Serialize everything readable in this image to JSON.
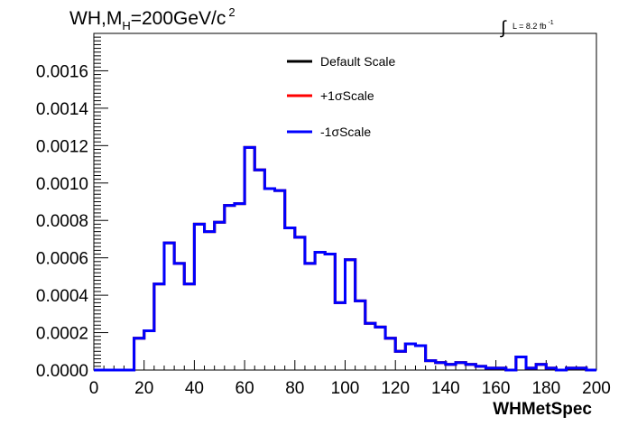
{
  "chart_data": {
    "type": "line",
    "style": "step histogram",
    "title": {
      "prefix": "WH,M",
      "subscript": "H",
      "value": "=200GeV/c",
      "superscript": "2"
    },
    "luminosity": {
      "symbol": "∫",
      "label": "L = 8.2 fb",
      "superscript": "-1"
    },
    "xlabel": "WHMetSpec",
    "ylabel": "",
    "xlim": [
      0,
      200
    ],
    "ylim": [
      0,
      0.0018
    ],
    "x_ticks": [
      0,
      20,
      40,
      60,
      80,
      100,
      120,
      140,
      160,
      180,
      200
    ],
    "x_tick_labels": [
      "0",
      "20",
      "40",
      "60",
      "80",
      "100",
      "120",
      "140",
      "160",
      "180",
      "200"
    ],
    "y_ticks": [
      0,
      0.0002,
      0.0004,
      0.0006,
      0.0008,
      0.001,
      0.0012,
      0.0014,
      0.0016
    ],
    "y_tick_labels": [
      "0.0000",
      "0.0002",
      "0.0004",
      "0.0006",
      "0.0008",
      "0.0010",
      "0.0012",
      "0.0014",
      "0.0016"
    ],
    "grid": false,
    "legend_position": "top-center",
    "bin_width": 4,
    "bin_edges_start": 0,
    "series": [
      {
        "name": "Default Scale",
        "color": "#000000",
        "values": [
          0,
          0,
          0,
          0,
          0.00017,
          0.00021,
          0.00046,
          0.00068,
          0.00057,
          0.00046,
          0.00078,
          0.00074,
          0.00079,
          0.00088,
          0.00089,
          0.00119,
          0.00107,
          0.00097,
          0.00096,
          0.00076,
          0.00071,
          0.00057,
          0.00063,
          0.00062,
          0.00036,
          0.00059,
          0.00037,
          0.00025,
          0.00023,
          0.00017,
          0.0001,
          0.00014,
          0.00013,
          5e-05,
          4e-05,
          3e-05,
          4e-05,
          3e-05,
          2e-05,
          1e-05,
          1e-05,
          0,
          7e-05,
          1e-05,
          3e-05,
          1e-05,
          0,
          1e-05,
          1e-05,
          0
        ]
      },
      {
        "name": "+1σScale",
        "color": "#ff0000",
        "values": [
          0,
          0,
          0,
          0,
          0.00017,
          0.00021,
          0.00046,
          0.00068,
          0.00057,
          0.00046,
          0.00078,
          0.00074,
          0.00079,
          0.00088,
          0.00089,
          0.00119,
          0.00107,
          0.00097,
          0.00096,
          0.00076,
          0.00071,
          0.00057,
          0.00063,
          0.00062,
          0.00036,
          0.00059,
          0.00037,
          0.00025,
          0.00023,
          0.00017,
          0.0001,
          0.00014,
          0.00013,
          5e-05,
          4e-05,
          3e-05,
          4e-05,
          3e-05,
          2e-05,
          1e-05,
          1e-05,
          0,
          7e-05,
          1e-05,
          3e-05,
          1e-05,
          0,
          1e-05,
          1e-05,
          0
        ]
      },
      {
        "name": "-1σScale",
        "color": "#0000ff",
        "values": [
          0,
          0,
          0,
          0,
          0.00017,
          0.00021,
          0.00046,
          0.00068,
          0.00057,
          0.00046,
          0.00078,
          0.00074,
          0.00079,
          0.00088,
          0.00089,
          0.00119,
          0.00107,
          0.00097,
          0.00096,
          0.00076,
          0.00071,
          0.00057,
          0.00063,
          0.00062,
          0.00036,
          0.00059,
          0.00037,
          0.00025,
          0.00023,
          0.00017,
          0.0001,
          0.00014,
          0.00013,
          5e-05,
          4e-05,
          3e-05,
          4e-05,
          3e-05,
          2e-05,
          1e-05,
          1e-05,
          0,
          7e-05,
          1e-05,
          3e-05,
          1e-05,
          0,
          1e-05,
          1e-05,
          0
        ]
      }
    ]
  }
}
